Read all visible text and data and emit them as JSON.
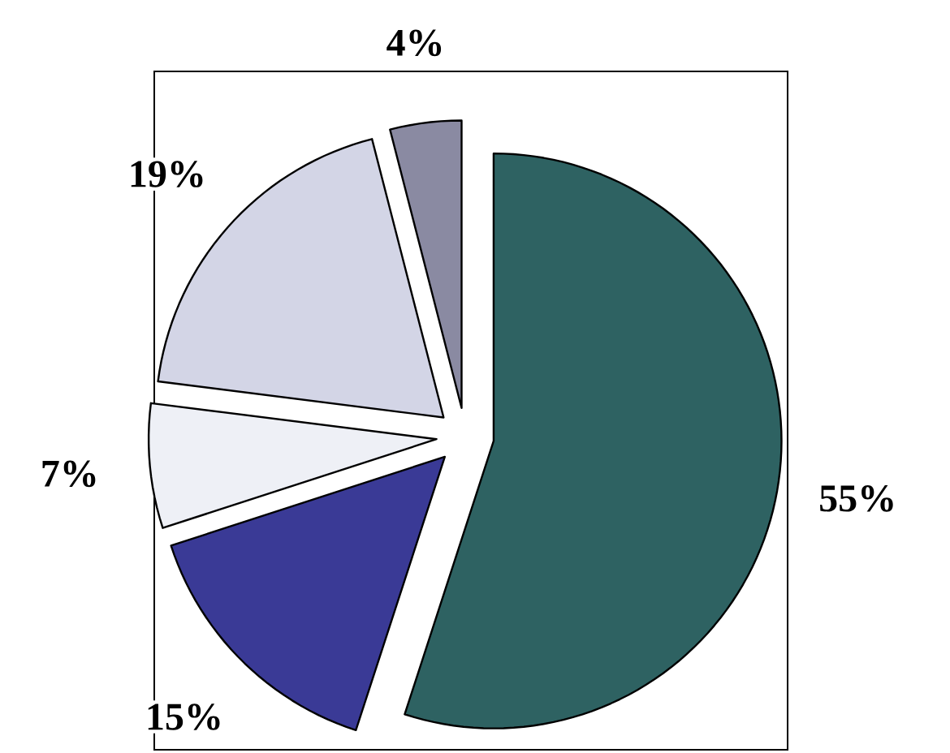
{
  "chart_data": {
    "type": "pie",
    "categories": [
      null,
      null,
      null,
      null,
      null
    ],
    "values": [
      55,
      15,
      7,
      19,
      4
    ],
    "colors": [
      "#2e6262",
      "#3a3a96",
      "#eef0f6",
      "#d3d5e6",
      "#8a8aa2"
    ],
    "value_labels": [
      "55%",
      "15%",
      "7%",
      "19%",
      "4%"
    ]
  }
}
